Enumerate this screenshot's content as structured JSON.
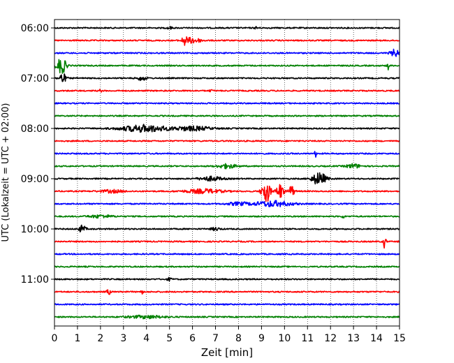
{
  "chart_data": {
    "type": "line",
    "title": "",
    "xlabel": "Zeit  [min]",
    "ylabel": "UTC (Lokalzeit = UTC + 02:00)",
    "xlim": [
      0,
      15
    ],
    "x_ticks": [
      0,
      1,
      2,
      3,
      4,
      5,
      6,
      7,
      8,
      9,
      10,
      11,
      12,
      13,
      14,
      15
    ],
    "y_tick_labels": [
      "06:00",
      "07:00",
      "08:00",
      "09:00",
      "10:00",
      "11:00"
    ],
    "y_tick_trace_index": [
      0,
      4,
      8,
      12,
      16,
      20
    ],
    "grid_x": true,
    "trace_interval_minutes": 15,
    "trace_colors": [
      "#000000",
      "#ff0000",
      "#0000ff",
      "#008000"
    ],
    "traces": [
      {
        "start": "06:00",
        "events": [
          {
            "t": 5.0,
            "amp": 2,
            "w": 0.1
          },
          {
            "t": 8.8,
            "amp": 2,
            "w": 0.08
          }
        ]
      },
      {
        "start": "06:15",
        "events": [
          {
            "t": 5.65,
            "amp": 6,
            "w": 0.1
          },
          {
            "t": 6.0,
            "amp": 4,
            "w": 0.35
          }
        ]
      },
      {
        "start": "06:30",
        "events": [
          {
            "t": 14.8,
            "amp": 5,
            "w": 0.2
          }
        ]
      },
      {
        "start": "06:45",
        "events": [
          {
            "t": 0.3,
            "amp": 12,
            "w": 0.2
          },
          {
            "t": 14.5,
            "amp": 8,
            "w": 0.04
          }
        ]
      },
      {
        "start": "07:00",
        "events": [
          {
            "t": 0.35,
            "amp": 7,
            "w": 0.15
          },
          {
            "t": 3.8,
            "amp": 3,
            "w": 0.2
          }
        ]
      },
      {
        "start": "07:15",
        "events": [
          {
            "t": 2.0,
            "amp": 2,
            "w": 0.05
          },
          {
            "t": 6.8,
            "amp": 2,
            "w": 0.05
          }
        ]
      },
      {
        "start": "07:30",
        "events": []
      },
      {
        "start": "07:45",
        "events": []
      },
      {
        "start": "08:00",
        "events": [
          {
            "t": 3.9,
            "amp": 5,
            "w": 1.0
          },
          {
            "t": 6.0,
            "amp": 3,
            "w": 0.8
          }
        ]
      },
      {
        "start": "08:15",
        "events": []
      },
      {
        "start": "08:30",
        "events": [
          {
            "t": 11.35,
            "amp": 5,
            "w": 0.04
          }
        ]
      },
      {
        "start": "08:45",
        "events": [
          {
            "t": 7.5,
            "amp": 3,
            "w": 0.4
          },
          {
            "t": 13.0,
            "amp": 3,
            "w": 0.3
          }
        ]
      },
      {
        "start": "09:00",
        "events": [
          {
            "t": 11.5,
            "amp": 9,
            "w": 0.3
          },
          {
            "t": 6.8,
            "amp": 3,
            "w": 0.5
          }
        ]
      },
      {
        "start": "09:15",
        "events": [
          {
            "t": 9.2,
            "amp": 16,
            "w": 0.18
          },
          {
            "t": 9.8,
            "amp": 11,
            "w": 0.15
          },
          {
            "t": 10.3,
            "amp": 8,
            "w": 0.12
          },
          {
            "t": 6.5,
            "amp": 3,
            "w": 0.8
          },
          {
            "t": 2.5,
            "amp": 2,
            "w": 0.5
          }
        ]
      },
      {
        "start": "09:30",
        "events": [
          {
            "t": 9.5,
            "amp": 4,
            "w": 0.8
          },
          {
            "t": 8.0,
            "amp": 2,
            "w": 0.5
          }
        ]
      },
      {
        "start": "09:45",
        "events": [
          {
            "t": 12.55,
            "amp": 4,
            "w": 0.04
          },
          {
            "t": 2.0,
            "amp": 2,
            "w": 0.5
          }
        ]
      },
      {
        "start": "10:00",
        "events": [
          {
            "t": 1.2,
            "amp": 5,
            "w": 0.15
          },
          {
            "t": 7.0,
            "amp": 2,
            "w": 0.2
          }
        ]
      },
      {
        "start": "10:15",
        "events": [
          {
            "t": 14.35,
            "amp": 9,
            "w": 0.06
          }
        ]
      },
      {
        "start": "10:30",
        "events": []
      },
      {
        "start": "10:45",
        "events": []
      },
      {
        "start": "11:00",
        "events": [
          {
            "t": 5.0,
            "amp": 2,
            "w": 0.1
          }
        ]
      },
      {
        "start": "11:15",
        "events": [
          {
            "t": 2.35,
            "amp": 4,
            "w": 0.08
          },
          {
            "t": 3.8,
            "amp": 3,
            "w": 0.05
          }
        ]
      },
      {
        "start": "11:30",
        "events": []
      },
      {
        "start": "11:45",
        "events": [
          {
            "t": 4.0,
            "amp": 2,
            "w": 0.8
          }
        ]
      }
    ]
  }
}
